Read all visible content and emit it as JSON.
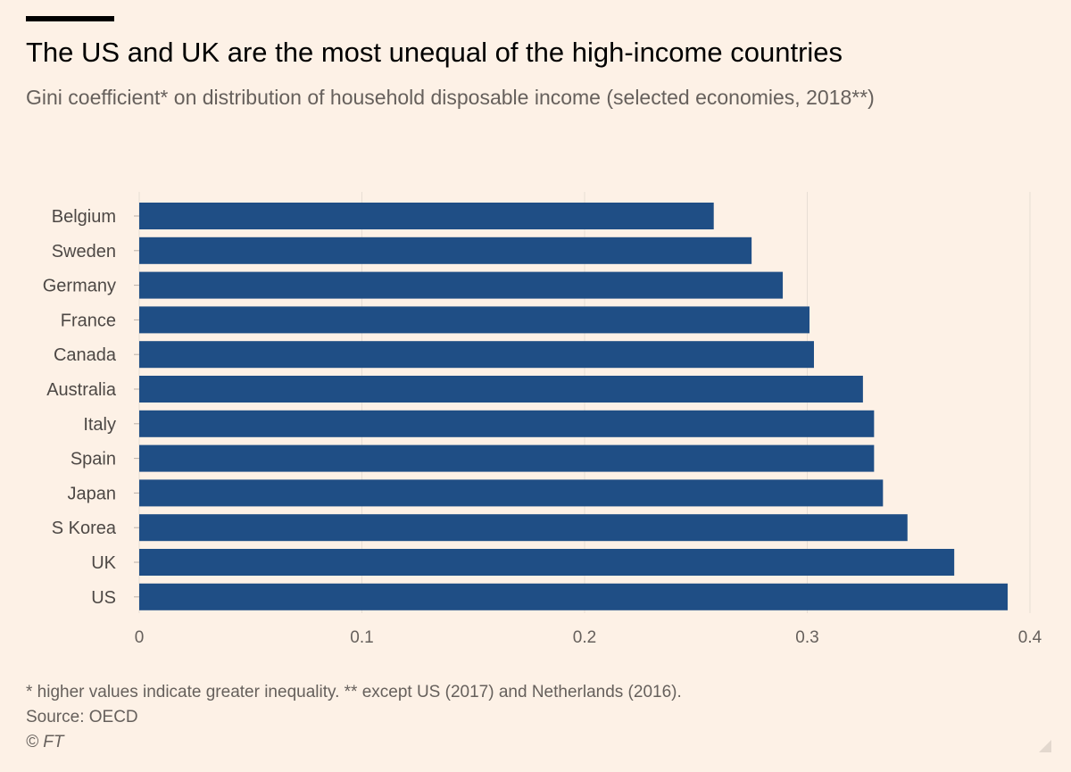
{
  "header": {
    "title": "The US and UK are the most unequal of the high-income countries",
    "subtitle": "Gini coefficient* on distribution of household disposable income (selected economies, 2018**)"
  },
  "footer": {
    "footnote": "* higher values indicate greater inequality. ** except US (2017) and Netherlands (2016).",
    "source": "Source: OECD",
    "credit": "© FT"
  },
  "colors": {
    "background": "#FDF1E6",
    "bar": "#1F4E85",
    "grid": "#E8DED4",
    "axis_text": "#66605C",
    "category_text": "#4D4845"
  },
  "chart_data": {
    "type": "bar",
    "orientation": "horizontal",
    "title": "The US and UK are the most unequal of the high-income countries",
    "subtitle": "Gini coefficient* on distribution of household disposable income (selected economies, 2018**)",
    "xlabel": "",
    "ylabel": "",
    "categories": [
      "Belgium",
      "Sweden",
      "Germany",
      "France",
      "Canada",
      "Australia",
      "Italy",
      "Spain",
      "Japan",
      "S Korea",
      "UK",
      "US"
    ],
    "values": [
      0.258,
      0.275,
      0.289,
      0.301,
      0.303,
      0.325,
      0.33,
      0.33,
      0.334,
      0.345,
      0.366,
      0.39
    ],
    "xlim": [
      0,
      0.4
    ],
    "xticks": [
      0,
      0.1,
      0.2,
      0.3,
      0.4
    ],
    "xtick_labels": [
      "0",
      "0.1",
      "0.2",
      "0.3",
      "0.4"
    ],
    "grid": true
  }
}
